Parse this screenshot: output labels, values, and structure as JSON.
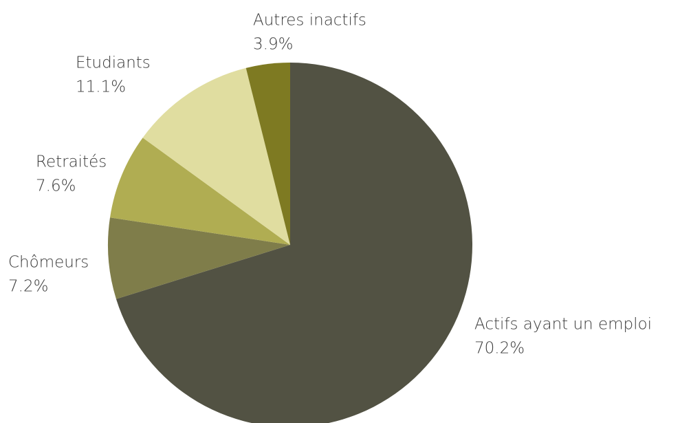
{
  "chart_data": {
    "type": "pie",
    "categories": [
      "Actifs ayant un emploi",
      "Chômeurs",
      "Retraités",
      "Etudiants",
      "Autres inactifs"
    ],
    "values": [
      70.2,
      7.2,
      7.6,
      11.1,
      3.9
    ],
    "value_labels": [
      "70.2%",
      "7.2%",
      "7.6%",
      "11.1%",
      "3.9%"
    ],
    "colors": [
      "#525243",
      "#7f7d4a",
      "#b0ad52",
      "#e0dda0",
      "#7e7a22"
    ]
  }
}
